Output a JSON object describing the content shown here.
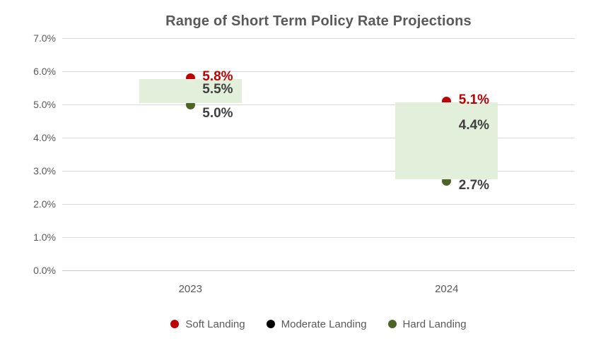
{
  "chart_data": {
    "type": "bar",
    "subtype": "floating-range-column-with-point-markers",
    "title": "Range of Short Term Policy Rate Projections",
    "categories": [
      "2023",
      "2024"
    ],
    "series": [
      {
        "name": "Soft Landing",
        "role": "max",
        "marker_color": "#C00000",
        "label_color": "#C00000",
        "values": [
          5.8,
          5.1
        ],
        "labels": [
          "5.8%",
          "5.1%"
        ]
      },
      {
        "name": "Moderate Landing",
        "role": "mid",
        "marker_color": "#000000",
        "label_color": "#3F3F3F",
        "values": [
          5.5,
          4.4
        ],
        "labels": [
          "5.5%",
          "4.4%"
        ]
      },
      {
        "name": "Hard Landing",
        "role": "min",
        "marker_color": "#4F6228",
        "label_color": "#3F3F3F",
        "values": [
          5.0,
          2.7
        ],
        "labels": [
          "5.0%",
          "2.7%"
        ]
      }
    ],
    "range_band_fill": "#E2EFDA",
    "ylim": [
      0,
      7
    ],
    "y_tick_step": 1,
    "y_tick_labels": [
      "0.0%",
      "1.0%",
      "2.0%",
      "3.0%",
      "4.0%",
      "5.0%",
      "6.0%",
      "7.0%"
    ],
    "xlabel": "",
    "ylabel": "",
    "grid": true,
    "legend_position": "bottom",
    "legend_items": [
      {
        "label": "Soft Landing",
        "color": "#C00000"
      },
      {
        "label": "Moderate Landing",
        "color": "#000000"
      },
      {
        "label": "Hard Landing",
        "color": "#4F6228"
      }
    ],
    "colors": {
      "background": "#FFFFFF",
      "gridline": "#D9D9D9",
      "axis_line": "#C6C6C6",
      "axis_text": "#595959",
      "title_text": "#595959"
    }
  }
}
